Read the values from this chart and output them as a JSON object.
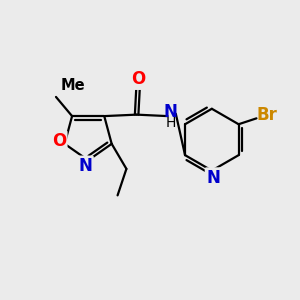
{
  "background_color": "#ebebeb",
  "bond_color": "#000000",
  "atom_colors": {
    "O": "#ff0000",
    "N": "#0000cc",
    "Br": "#cc8800",
    "C": "#000000",
    "H": "#000000"
  },
  "font_size": 12,
  "lw": 1.6
}
